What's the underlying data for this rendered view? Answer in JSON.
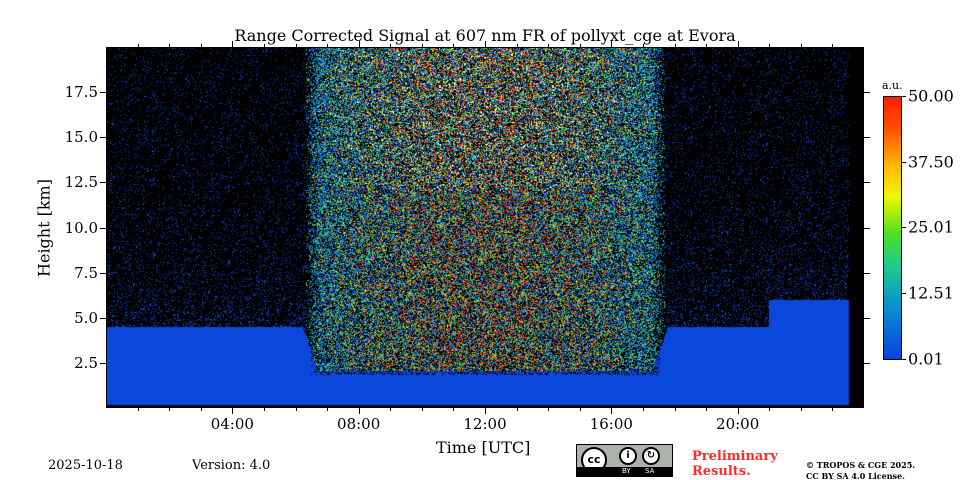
{
  "chart_data": {
    "type": "heatmap",
    "title": "Range Corrected Signal at 607 nm FR of pollyxt_cge at Evora",
    "xlabel": "Time [UTC]",
    "ylabel": "Height [km]",
    "xlim_hours": [
      0,
      24
    ],
    "ylim_km": [
      0,
      20
    ],
    "x_ticks": [
      "04:00",
      "08:00",
      "12:00",
      "16:00",
      "20:00"
    ],
    "x_tick_hours": [
      4,
      8,
      12,
      16,
      20
    ],
    "y_ticks": [
      "2.5",
      "5.0",
      "7.5",
      "10.0",
      "12.5",
      "15.0",
      "17.5"
    ],
    "y_tick_values": [
      2.5,
      5,
      7.5,
      10,
      12.5,
      15,
      17.5
    ],
    "colorbar": {
      "unit": "a.u.",
      "ticks": [
        "0.01",
        "12.51",
        "25.01",
        "37.50",
        "50.00"
      ],
      "tick_values": [
        0.01,
        12.51,
        25.01,
        37.5,
        50
      ],
      "range": [
        0.01,
        50
      ],
      "colormap": "jet"
    },
    "features": {
      "daylight_noise_hours": [
        6.2,
        17.8
      ],
      "boundary_layer_top_km_night": 4.5,
      "no_data_after_hour": 23.55
    }
  },
  "footer": {
    "date": "2025-10-18",
    "version": "Version: 4.0",
    "preliminary_line1": "Preliminary",
    "preliminary_line2": "Results.",
    "copyright_line1": "© TROPOS & CGE 2025.",
    "copyright_line2": "CC BY SA 4.0 License.",
    "license_badge": {
      "cc": "cc",
      "by": "BY",
      "sa": "SA"
    }
  }
}
